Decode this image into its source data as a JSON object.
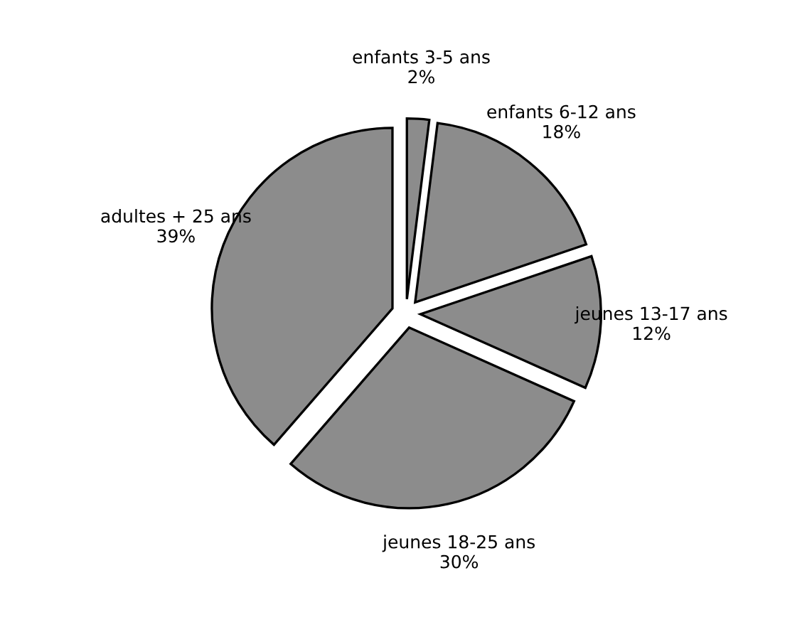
{
  "chart_data": {
    "type": "pie",
    "categories": [
      "enfants 3-5 ans",
      "enfants 6-12 ans",
      "jeunes 13-17 ans",
      "jeunes 18-25 ans",
      "adultes + 25 ans"
    ],
    "values": [
      2,
      18,
      12,
      30,
      39
    ],
    "value_labels": [
      "2%",
      "18%",
      "12%",
      "30%",
      "39%"
    ],
    "colors": [
      "#8c8c8c",
      "#8c8c8c",
      "#8c8c8c",
      "#8c8c8c",
      "#8c8c8c"
    ]
  }
}
